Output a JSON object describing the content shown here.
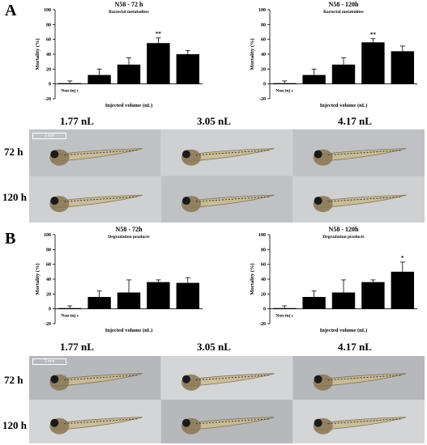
{
  "panels": [
    {
      "letter": "A",
      "charts": [
        {
          "title": "N58 - 72 h",
          "subtitle": "Bacterial metabolites",
          "ylabel": "Mortality (%)",
          "xlabel": "Injected volume (nL)",
          "categories": [
            "Non-inj c",
            "0.074",
            "1.77",
            "3.05",
            "4.17"
          ],
          "values": [
            1,
            12,
            26,
            55,
            40
          ],
          "errors": [
            3,
            8,
            9,
            7,
            5
          ],
          "marks": [
            "",
            "",
            "",
            "**",
            ""
          ],
          "yticks": [
            100,
            80,
            60,
            40,
            20,
            0,
            -20
          ],
          "ylim": [
            -20,
            100
          ]
        },
        {
          "title": "N58 - 120h",
          "subtitle": "Bacterial metabolites",
          "ylabel": "Mortality (%)",
          "xlabel": "Injected volume (nL)",
          "categories": [
            "Non-inj c",
            "0.074",
            "1.77",
            "3.05",
            "4.17"
          ],
          "values": [
            1,
            12,
            26,
            56,
            44
          ],
          "errors": [
            3,
            8,
            9,
            5,
            7
          ],
          "marks": [
            "",
            "",
            "",
            "**",
            ""
          ],
          "yticks": [
            100,
            80,
            60,
            40,
            20,
            0,
            -20
          ],
          "ylim": [
            -20,
            100
          ]
        }
      ],
      "concentrations": [
        "1.77 nL",
        "3.05 nL",
        "4.17 nL"
      ],
      "rows": [
        "72 h",
        "120 h"
      ],
      "scalebar": "1 mm"
    },
    {
      "letter": "B",
      "charts": [
        {
          "title": "N58 - 72h",
          "subtitle": "Degradation products",
          "ylabel": "Mortality (%)",
          "xlabel": "Injected volume (nL)",
          "categories": [
            "Non-inj c",
            "0.074",
            "1.77",
            "3.05",
            "4.17"
          ],
          "values": [
            1,
            16,
            22,
            36,
            35
          ],
          "errors": [
            3,
            8,
            17,
            3,
            7
          ],
          "marks": [
            "",
            "",
            "",
            "",
            ""
          ],
          "yticks": [
            100,
            80,
            60,
            40,
            20,
            0,
            -20
          ],
          "ylim": [
            -20,
            100
          ]
        },
        {
          "title": "N58 - 120h",
          "subtitle": "Degradation products",
          "ylabel": "Mortality (%)",
          "xlabel": "Injected volume (nL)",
          "categories": [
            "Non-inj c",
            "0.074",
            "1.77",
            "3.05",
            "4.17"
          ],
          "values": [
            1,
            16,
            22,
            36,
            50
          ],
          "errors": [
            3,
            8,
            17,
            3,
            13
          ],
          "marks": [
            "",
            "",
            "",
            "",
            "*"
          ],
          "yticks": [
            100,
            80,
            60,
            40,
            20,
            0,
            -20
          ],
          "ylim": [
            -20,
            100
          ]
        }
      ],
      "concentrations": [
        "1.77 nL",
        "3.05 nL",
        "4.17 nL"
      ],
      "rows": [
        "72 h",
        "120 h"
      ],
      "scalebar": "1 mm"
    }
  ],
  "chart_data": [
    {
      "type": "bar",
      "title": "N58 - 72 h",
      "subtitle": "Bacterial metabolites",
      "xlabel": "Injected volume (nL)",
      "ylabel": "Mortality (%)",
      "categories": [
        "Non-inj c",
        "0.074",
        "1.77",
        "3.05",
        "4.17"
      ],
      "values": [
        1,
        12,
        26,
        55,
        40
      ],
      "errors": [
        3,
        8,
        9,
        7,
        5
      ],
      "annotations": [
        "",
        "",
        "",
        "**",
        ""
      ],
      "ylim": [
        -20,
        100
      ]
    },
    {
      "type": "bar",
      "title": "N58 - 120h",
      "subtitle": "Bacterial metabolites",
      "xlabel": "Injected volume (nL)",
      "ylabel": "Mortality (%)",
      "categories": [
        "Non-inj c",
        "0.074",
        "1.77",
        "3.05",
        "4.17"
      ],
      "values": [
        1,
        12,
        26,
        56,
        44
      ],
      "errors": [
        3,
        8,
        9,
        5,
        7
      ],
      "annotations": [
        "",
        "",
        "",
        "**",
        ""
      ],
      "ylim": [
        -20,
        100
      ]
    },
    {
      "type": "bar",
      "title": "N58 - 72h",
      "subtitle": "Degradation products",
      "xlabel": "Injected volume (nL)",
      "ylabel": "Mortality (%)",
      "categories": [
        "Non-inj c",
        "0.074",
        "1.77",
        "3.05",
        "4.17"
      ],
      "values": [
        1,
        16,
        22,
        36,
        35
      ],
      "errors": [
        3,
        8,
        17,
        3,
        7
      ],
      "annotations": [
        "",
        "",
        "",
        "",
        ""
      ],
      "ylim": [
        -20,
        100
      ]
    },
    {
      "type": "bar",
      "title": "N58 - 120h",
      "subtitle": "Degradation products",
      "xlabel": "Injected volume (nL)",
      "ylabel": "Mortality (%)",
      "categories": [
        "Non-inj c",
        "0.074",
        "1.77",
        "3.05",
        "4.17"
      ],
      "values": [
        1,
        16,
        22,
        36,
        50
      ],
      "errors": [
        3,
        8,
        17,
        3,
        13
      ],
      "annotations": [
        "",
        "",
        "",
        "",
        "*"
      ],
      "ylim": [
        -20,
        100
      ]
    }
  ]
}
